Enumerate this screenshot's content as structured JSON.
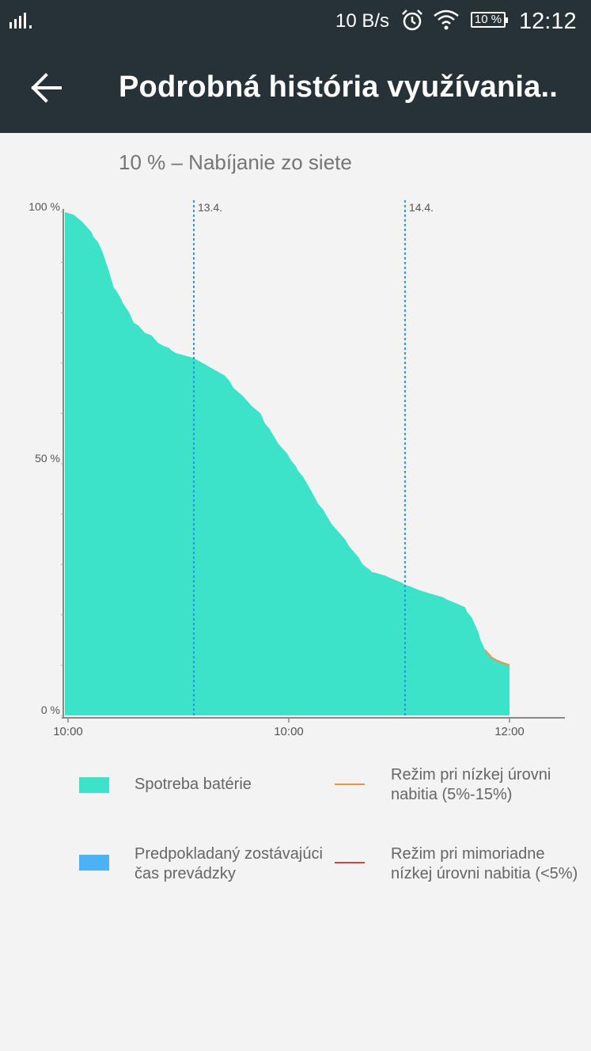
{
  "status_bar": {
    "network_speed": "10 B/s",
    "battery_text": "10 %",
    "time": "12:12",
    "icons": [
      "signal-icon",
      "alarm-icon",
      "wifi-icon",
      "battery-icon"
    ]
  },
  "app_bar": {
    "title": "Podrobná história využívania..",
    "back_icon": "arrow-back-icon"
  },
  "battery_status": "10 % – Nabíjanie zo siete",
  "chart_data": {
    "type": "area",
    "y_tick_labels": [
      "100 %",
      "50 %",
      "0 %"
    ],
    "ylim": [
      0,
      100
    ],
    "x_tick_labels": [
      "10:00",
      "10:00",
      "12:00"
    ],
    "x_tick_positions": [
      0,
      0.5,
      1.0
    ],
    "day_markers": [
      {
        "label": "13.4.",
        "x": 0.29
      },
      {
        "label": "14.4.",
        "x": 0.765
      }
    ],
    "series": [
      {
        "name": "Spotreba batérie",
        "color": "#3de3c9",
        "x": [
          0,
          0.02,
          0.04,
          0.06,
          0.065,
          0.075,
          0.085,
          0.1,
          0.11,
          0.115,
          0.125,
          0.13,
          0.145,
          0.155,
          0.165,
          0.17,
          0.18,
          0.195,
          0.21,
          0.22,
          0.235,
          0.24,
          0.25,
          0.27,
          0.29,
          0.31,
          0.33,
          0.35,
          0.36,
          0.37,
          0.38,
          0.4,
          0.41,
          0.42,
          0.44,
          0.45,
          0.46,
          0.47,
          0.48,
          0.49,
          0.5,
          0.51,
          0.52,
          0.525,
          0.535,
          0.545,
          0.555,
          0.57,
          0.58,
          0.59,
          0.6,
          0.62,
          0.63,
          0.64,
          0.65,
          0.66,
          0.67,
          0.685,
          0.69,
          0.7,
          0.72,
          0.74,
          0.755,
          0.765,
          0.78,
          0.8,
          0.83,
          0.85,
          0.86,
          0.88,
          0.9,
          0.905,
          0.915,
          0.92,
          0.93,
          0.935,
          0.94,
          0.945,
          0.95,
          0.96,
          0.97,
          0.98,
          1.0
        ],
        "values": [
          100,
          99.5,
          98,
          96,
          95,
          94,
          92,
          88,
          85,
          84.5,
          83,
          82,
          80,
          78,
          77.5,
          77,
          76,
          75.5,
          74,
          73.5,
          73,
          72.5,
          72,
          71.5,
          71,
          70,
          69,
          68,
          67.5,
          66.5,
          65,
          63.5,
          62.5,
          61.5,
          60,
          58,
          57,
          55.5,
          54,
          53,
          52,
          50.5,
          49.5,
          48.5,
          47.5,
          46,
          44.5,
          42,
          41,
          39.5,
          38,
          36,
          35,
          33.5,
          32.5,
          31.5,
          30,
          29,
          28.5,
          28.3,
          27.8,
          27,
          26.5,
          26,
          25.5,
          24.8,
          24,
          23.5,
          23,
          22.3,
          21.5,
          20.5,
          19.5,
          18.5,
          16.5,
          15,
          14,
          13,
          12.5,
          11.5,
          11,
          10.6,
          10
        ]
      }
    ],
    "low_mode_segment": {
      "color": "#e8964a",
      "from_x": 0.945,
      "to_x": 1.0
    },
    "legend": [
      {
        "label": "Spotreba batérie",
        "color": "#3de3c9",
        "kind": "swatch"
      },
      {
        "label": "Režim pri nízkej úrovni nabitia (5%-15%)",
        "color": "#e8964a",
        "kind": "line"
      },
      {
        "label": "Predpokladaný zostávajúci čas prevádzky",
        "color": "#4ab2f5",
        "kind": "swatch"
      },
      {
        "label": "Režim pri mimoriadne nízkej úrovni nabitia (<5%)",
        "color": "#c64b2a",
        "kind": "line"
      }
    ]
  },
  "legend_text": {
    "consumption": "Spotreba batérie",
    "low_mode_line1": "Režim pri nízkej úrovni",
    "low_mode_line2": "nabitia (5%-15%)",
    "predicted_line1": "Predpokladaný zostávajúci",
    "predicted_line2": "čas prevádzky",
    "critical_mode_line1": "Režim pri mimoriadne",
    "critical_mode_line2": "nízkej úrovni nabitia (<5%)"
  },
  "colors": {
    "toolbar": "#263238",
    "background": "#f3f3f3",
    "consumption": "#3de3c9",
    "predicted": "#4ab2f5",
    "low_mode": "#e8964a",
    "critical_mode": "#c64b2a",
    "day_marker": "#2196f3"
  }
}
